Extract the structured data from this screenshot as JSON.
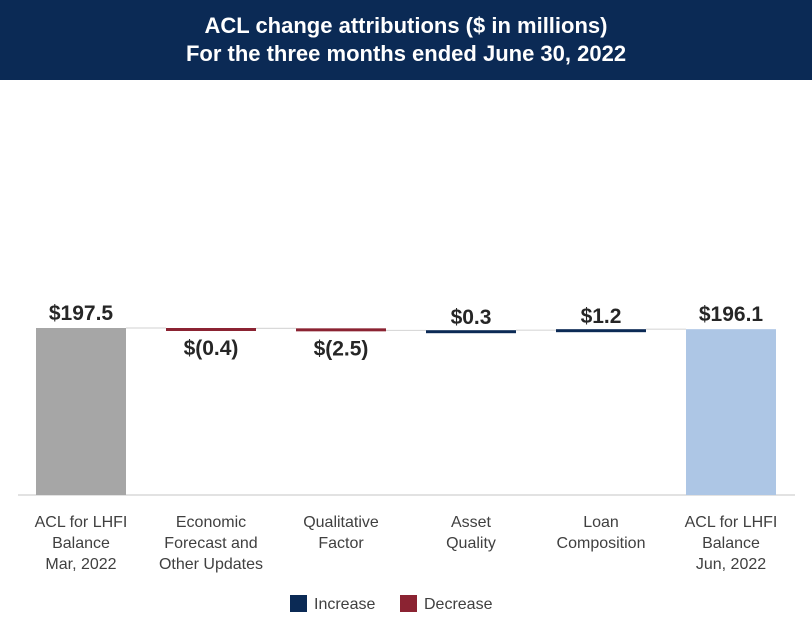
{
  "header": {
    "title": "ACL change attributions ($ in millions)",
    "subtitle": "For the three months ended June 30, 2022"
  },
  "chart_data": {
    "type": "waterfall",
    "title": "ACL change attributions ($ in millions)",
    "subtitle": "For the three months ended June 30, 2022",
    "categories": [
      [
        "ACL for LHFI",
        "Balance",
        "Mar, 2022"
      ],
      [
        "Economic",
        "Forecast and",
        "Other Updates"
      ],
      [
        "Qualitative",
        "Factor"
      ],
      [
        "Asset",
        "Quality"
      ],
      [
        "Loan",
        "Composition"
      ],
      [
        "ACL for LHFI",
        "Balance",
        "Jun, 2022"
      ]
    ],
    "values": [
      197.5,
      -0.4,
      -2.5,
      0.3,
      1.2,
      196.1
    ],
    "kinds": [
      "total",
      "delta",
      "delta",
      "delta",
      "delta",
      "total"
    ],
    "labels": [
      "$197.5",
      "$(0.4)",
      "$(2.5)",
      "$0.3",
      "$1.2",
      "$196.1"
    ],
    "axis_min": 0,
    "axis_max": 197.5,
    "legend": [
      {
        "name": "Increase",
        "color": "#0b2a55"
      },
      {
        "name": "Decrease",
        "color": "#8b2332"
      }
    ],
    "colors": {
      "start_total": "#a6a6a6",
      "end_total": "#adc6e5",
      "increase": "#0b2a55",
      "decrease": "#8b2332"
    }
  }
}
